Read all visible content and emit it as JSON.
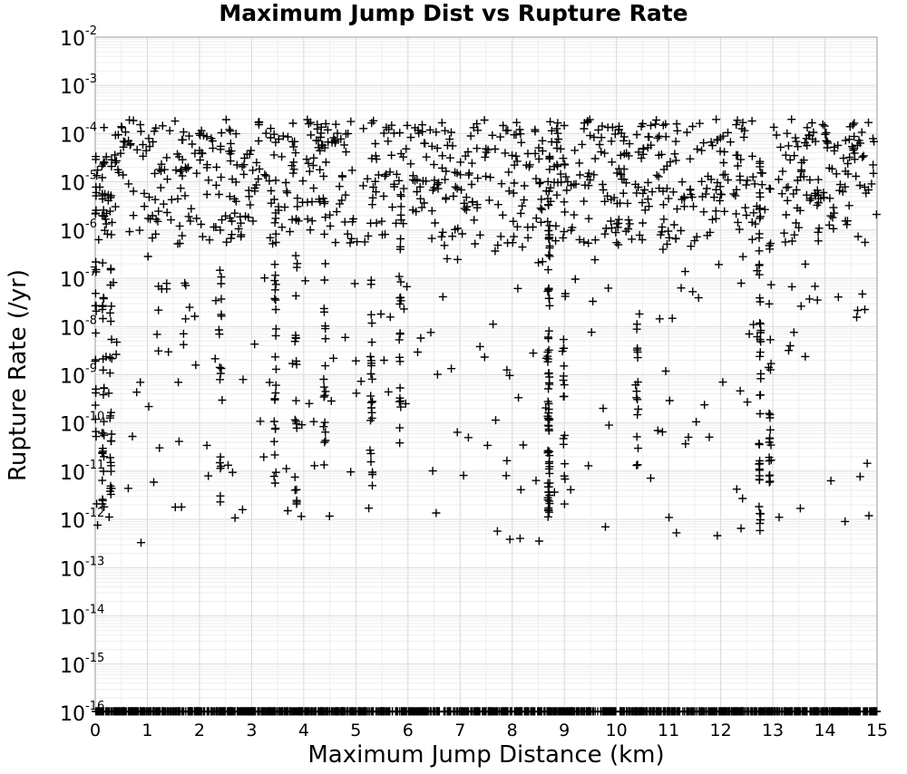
{
  "chart_data": {
    "type": "scatter",
    "title": "Maximum Jump Dist vs Rupture Rate",
    "xlabel": "Maximum Jump Distance (km)",
    "ylabel": "Rupture Rate (/yr)",
    "xlim": [
      0,
      15
    ],
    "ylim_log10": [
      -16,
      -2
    ],
    "y_scale": "log",
    "grid": true,
    "marker": "plus",
    "marker_color": "#000000",
    "x_ticks": [
      "0",
      "1",
      "2",
      "3",
      "4",
      "5",
      "6",
      "7",
      "8",
      "9",
      "10",
      "11",
      "12",
      "13",
      "14",
      "15"
    ],
    "y_ticks": [
      {
        "base": "10",
        "exp": "-2"
      },
      {
        "base": "10",
        "exp": "-3"
      },
      {
        "base": "10",
        "exp": "-4"
      },
      {
        "base": "10",
        "exp": "-5"
      },
      {
        "base": "10",
        "exp": "-6"
      },
      {
        "base": "10",
        "exp": "-7"
      },
      {
        "base": "10",
        "exp": "-8"
      },
      {
        "base": "10",
        "exp": "-9"
      },
      {
        "base": "10",
        "exp": "-10"
      },
      {
        "base": "10",
        "exp": "-11"
      },
      {
        "base": "10",
        "exp": "-12"
      },
      {
        "base": "10",
        "exp": "-13"
      },
      {
        "base": "10",
        "exp": "-14"
      },
      {
        "base": "10",
        "exp": "-15"
      },
      {
        "base": "10",
        "exp": "-16"
      }
    ],
    "columns": [
      {
        "x": 0.0,
        "min": -10.5,
        "max": -3.8,
        "n": 40
      },
      {
        "x": 0.15,
        "min": -11.8,
        "max": -3.7,
        "n": 35
      },
      {
        "x": 0.3,
        "min": -11.5,
        "max": -4.0,
        "n": 28
      },
      {
        "x": 2.4,
        "min": -11.8,
        "max": -4.2,
        "n": 18
      },
      {
        "x": 3.45,
        "min": -11.9,
        "max": -3.9,
        "n": 30
      },
      {
        "x": 3.85,
        "min": -12.2,
        "max": -4.3,
        "n": 22
      },
      {
        "x": 4.4,
        "min": -10.5,
        "max": -4.1,
        "n": 22
      },
      {
        "x": 5.3,
        "min": -11.5,
        "max": -4.1,
        "n": 26
      },
      {
        "x": 5.85,
        "min": -10.6,
        "max": -4.5,
        "n": 24
      },
      {
        "x": 8.7,
        "min": -12.0,
        "max": -4.3,
        "n": 80
      },
      {
        "x": 9.0,
        "min": -11.8,
        "max": -4.5,
        "n": 20
      },
      {
        "x": 10.4,
        "min": -10.9,
        "max": -4.9,
        "n": 16
      },
      {
        "x": 12.75,
        "min": -12.4,
        "max": -4.2,
        "n": 45
      },
      {
        "x": 12.95,
        "min": -11.5,
        "max": -4.8,
        "n": 22
      }
    ],
    "band": {
      "xmin": 0,
      "xmax": 15,
      "ymin_log10": -6.3,
      "ymax_log10": -3.7,
      "n": 900
    },
    "sparse": {
      "xmin": 0,
      "xmax": 15,
      "ymin_log10": -12.5,
      "ymax_log10": -6.3,
      "n": 200
    },
    "zero_rate_row": {
      "y_log10": -16,
      "xmin": 0,
      "xmax": 15,
      "n": 1400
    }
  }
}
